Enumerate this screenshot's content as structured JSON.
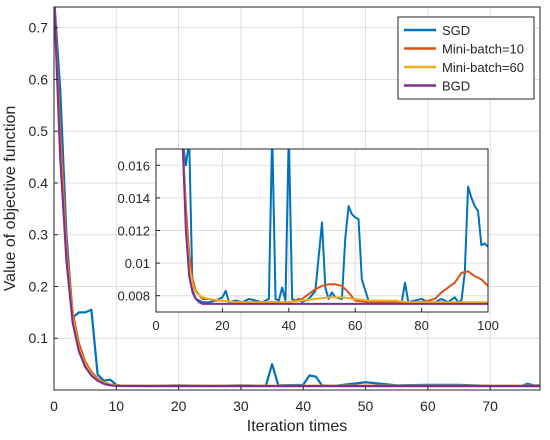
{
  "chart_data": [
    {
      "type": "line",
      "xlabel": "Iteration times",
      "ylabel": "Value of objective function",
      "xlim": [
        0,
        78
      ],
      "ylim": [
        0,
        0.74
      ],
      "xticks": [
        0,
        10,
        20,
        30,
        40,
        50,
        60,
        70
      ],
      "yticks": [
        0.1,
        0.2,
        0.3,
        0.4,
        0.5,
        0.6,
        0.7
      ],
      "grid": true,
      "legend": "top-right",
      "series": [
        {
          "name": "SGD",
          "color": "#0072BD",
          "x": [
            0,
            1,
            2,
            3,
            4,
            5,
            6,
            7,
            8,
            9,
            10,
            11,
            12,
            15,
            20,
            25,
            30,
            34,
            35,
            36,
            40,
            41,
            42,
            43,
            45,
            50,
            55,
            60,
            65,
            70,
            75,
            76,
            77,
            78
          ],
          "y": [
            0.76,
            0.58,
            0.3,
            0.14,
            0.15,
            0.15,
            0.155,
            0.03,
            0.018,
            0.02,
            0.01,
            0.008,
            0.008,
            0.008,
            0.009,
            0.008,
            0.009,
            0.008,
            0.05,
            0.009,
            0.01,
            0.028,
            0.026,
            0.009,
            0.008,
            0.015,
            0.009,
            0.01,
            0.01,
            0.008,
            0.008,
            0.012,
            0.009,
            0.009
          ]
        },
        {
          "name": "Mini-batch=10",
          "color": "#D95319",
          "x": [
            0,
            1,
            2,
            3,
            4,
            5,
            6,
            7,
            8,
            9,
            10,
            12,
            15,
            20,
            25,
            30,
            40,
            50,
            60,
            70,
            78
          ],
          "y": [
            0.76,
            0.5,
            0.28,
            0.15,
            0.09,
            0.055,
            0.035,
            0.022,
            0.015,
            0.011,
            0.009,
            0.008,
            0.008,
            0.008,
            0.008,
            0.008,
            0.008,
            0.0085,
            0.008,
            0.008,
            0.008
          ]
        },
        {
          "name": "Mini-batch=60",
          "color": "#EDB120",
          "x": [
            0,
            1,
            2,
            3,
            4,
            5,
            6,
            7,
            8,
            9,
            10,
            12,
            15,
            20,
            25,
            30,
            40,
            50,
            60,
            70,
            78
          ],
          "y": [
            0.76,
            0.47,
            0.26,
            0.14,
            0.08,
            0.05,
            0.031,
            0.02,
            0.014,
            0.011,
            0.009,
            0.008,
            0.008,
            0.008,
            0.008,
            0.008,
            0.008,
            0.008,
            0.008,
            0.008,
            0.008
          ]
        },
        {
          "name": "BGD",
          "color": "#7E2F8E",
          "x": [
            0,
            1,
            2,
            3,
            4,
            5,
            6,
            7,
            8,
            9,
            10,
            12,
            15,
            20,
            30,
            40,
            50,
            60,
            70,
            78
          ],
          "y": [
            0.76,
            0.45,
            0.25,
            0.13,
            0.075,
            0.045,
            0.028,
            0.018,
            0.012,
            0.009,
            0.008,
            0.0077,
            0.0075,
            0.0075,
            0.0075,
            0.0075,
            0.0075,
            0.0075,
            0.0075,
            0.0075
          ]
        }
      ]
    },
    {
      "type": "line",
      "xlim": [
        0,
        100
      ],
      "ylim": [
        0.007,
        0.017
      ],
      "xticks": [
        0,
        20,
        40,
        60,
        80,
        100
      ],
      "yticks": [
        0.008,
        0.01,
        0.012,
        0.014,
        0.016
      ],
      "ytick_labels": [
        "0.008",
        "0.01",
        "0.012",
        "0.014",
        "0.016"
      ],
      "grid": true,
      "series": [
        {
          "name": "SGD",
          "color": "#0072BD",
          "x": [
            8,
            9,
            10,
            11,
            12,
            13,
            14,
            16,
            18,
            20,
            21,
            22,
            24,
            26,
            28,
            30,
            32,
            34,
            35,
            36,
            37,
            38,
            39,
            40,
            41,
            42,
            43,
            44,
            46,
            48,
            50,
            51,
            52,
            53,
            54,
            56,
            57,
            58,
            59,
            60,
            61,
            62,
            64,
            66,
            68,
            70,
            72,
            74,
            75,
            76,
            78,
            80,
            82,
            84,
            86,
            88,
            90,
            91,
            92,
            93,
            94,
            95,
            96,
            97,
            98,
            99,
            100
          ],
          "y": [
            0.0175,
            0.016,
            0.0175,
            0.0083,
            0.0078,
            0.0077,
            0.0076,
            0.0076,
            0.0077,
            0.0079,
            0.0083,
            0.0076,
            0.0077,
            0.0076,
            0.0078,
            0.0077,
            0.0076,
            0.0078,
            0.018,
            0.0078,
            0.0077,
            0.0085,
            0.0077,
            0.018,
            0.0078,
            0.0077,
            0.0078,
            0.0076,
            0.0078,
            0.0083,
            0.0125,
            0.0085,
            0.0078,
            0.0082,
            0.0079,
            0.0078,
            0.0115,
            0.0135,
            0.013,
            0.0128,
            0.0127,
            0.009,
            0.0077,
            0.0076,
            0.0077,
            0.0076,
            0.0077,
            0.0076,
            0.0088,
            0.0076,
            0.0077,
            0.0078,
            0.0076,
            0.0076,
            0.0078,
            0.0076,
            0.0079,
            0.0076,
            0.0077,
            0.0094,
            0.0147,
            0.014,
            0.0135,
            0.0132,
            0.0111,
            0.0112,
            0.011
          ]
        },
        {
          "name": "Mini-batch=10",
          "color": "#D95319",
          "x": [
            8,
            9,
            10,
            11,
            12,
            14,
            16,
            18,
            20,
            24,
            28,
            32,
            36,
            40,
            44,
            46,
            48,
            50,
            52,
            54,
            56,
            58,
            60,
            64,
            68,
            72,
            76,
            80,
            84,
            86,
            88,
            90,
            92,
            94,
            96,
            98,
            100
          ],
          "y": [
            0.0175,
            0.0135,
            0.0105,
            0.009,
            0.0083,
            0.0078,
            0.0078,
            0.0077,
            0.0077,
            0.0076,
            0.0076,
            0.0076,
            0.0076,
            0.0076,
            0.0078,
            0.0081,
            0.0084,
            0.0086,
            0.0087,
            0.0087,
            0.0086,
            0.0082,
            0.0077,
            0.0076,
            0.0076,
            0.0076,
            0.0076,
            0.0076,
            0.0078,
            0.0082,
            0.0085,
            0.0088,
            0.0094,
            0.0095,
            0.0092,
            0.009,
            0.0086
          ]
        },
        {
          "name": "Mini-batch=60",
          "color": "#EDB120",
          "x": [
            8,
            9,
            10,
            11,
            12,
            14,
            16,
            20,
            24,
            28,
            32,
            36,
            40,
            44,
            48,
            52,
            56,
            60,
            64,
            68,
            72,
            76,
            80,
            84,
            88,
            92,
            96,
            100
          ],
          "y": [
            0.0175,
            0.0125,
            0.0098,
            0.0087,
            0.0082,
            0.0079,
            0.0078,
            0.0077,
            0.0076,
            0.0076,
            0.0076,
            0.0076,
            0.0076,
            0.0077,
            0.0078,
            0.0079,
            0.0079,
            0.0078,
            0.0077,
            0.0077,
            0.0077,
            0.0076,
            0.0076,
            0.0076,
            0.0076,
            0.0076,
            0.0076,
            0.0076
          ]
        },
        {
          "name": "BGD",
          "color": "#7E2F8E",
          "x": [
            8,
            9,
            10,
            11,
            12,
            13,
            14,
            16,
            20,
            30,
            40,
            50,
            60,
            70,
            80,
            90,
            100
          ],
          "y": [
            0.0175,
            0.012,
            0.0092,
            0.0082,
            0.0078,
            0.0076,
            0.0075,
            0.0075,
            0.0075,
            0.0075,
            0.0075,
            0.0075,
            0.0075,
            0.0075,
            0.0075,
            0.0075,
            0.0075
          ]
        }
      ]
    }
  ]
}
